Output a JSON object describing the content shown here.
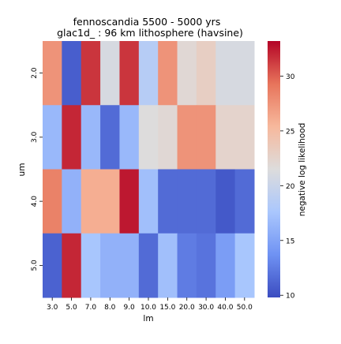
{
  "chart_data": {
    "type": "heatmap",
    "title": "fennoscandia 5500 - 5000 yrs",
    "subtitle": "glac1d_ : 96 km lithosphere (havsine)",
    "xlabel": "lm",
    "ylabel": "um",
    "x_categories": [
      "3.0",
      "5.0",
      "7.0",
      "8.0",
      "9.0",
      "10.0",
      "15.0",
      "20.0",
      "30.0",
      "40.0",
      "50.0"
    ],
    "y_categories": [
      "2.0",
      "3.0",
      "4.0",
      "5.0"
    ],
    "values": [
      [
        27.5,
        10.8,
        31.5,
        21.0,
        31.5,
        18.5,
        27.5,
        22.0,
        23.0,
        21.0,
        21.0
      ],
      [
        16.5,
        32.0,
        16.5,
        11.5,
        16.5,
        21.5,
        22.0,
        27.5,
        27.5,
        22.5,
        22.5
      ],
      [
        28.5,
        16.0,
        26.0,
        26.0,
        32.5,
        17.0,
        11.5,
        11.5,
        11.5,
        10.5,
        11.5
      ],
      [
        11.0,
        32.0,
        17.5,
        16.0,
        16.0,
        11.5,
        17.0,
        12.5,
        12.0,
        14.5,
        17.5
      ]
    ],
    "colorbar": {
      "label": "negative log likelihood",
      "min": 9.8,
      "max": 33.2,
      "ticks": [
        "10",
        "15",
        "20",
        "25",
        "30"
      ],
      "tick_values": [
        10,
        15,
        20,
        25,
        30
      ]
    },
    "colormap": [
      "#3b4cc0",
      "#6f92f3",
      "#aac7fd",
      "#dddcdc",
      "#f7b89c",
      "#e7745b",
      "#b40426"
    ]
  }
}
